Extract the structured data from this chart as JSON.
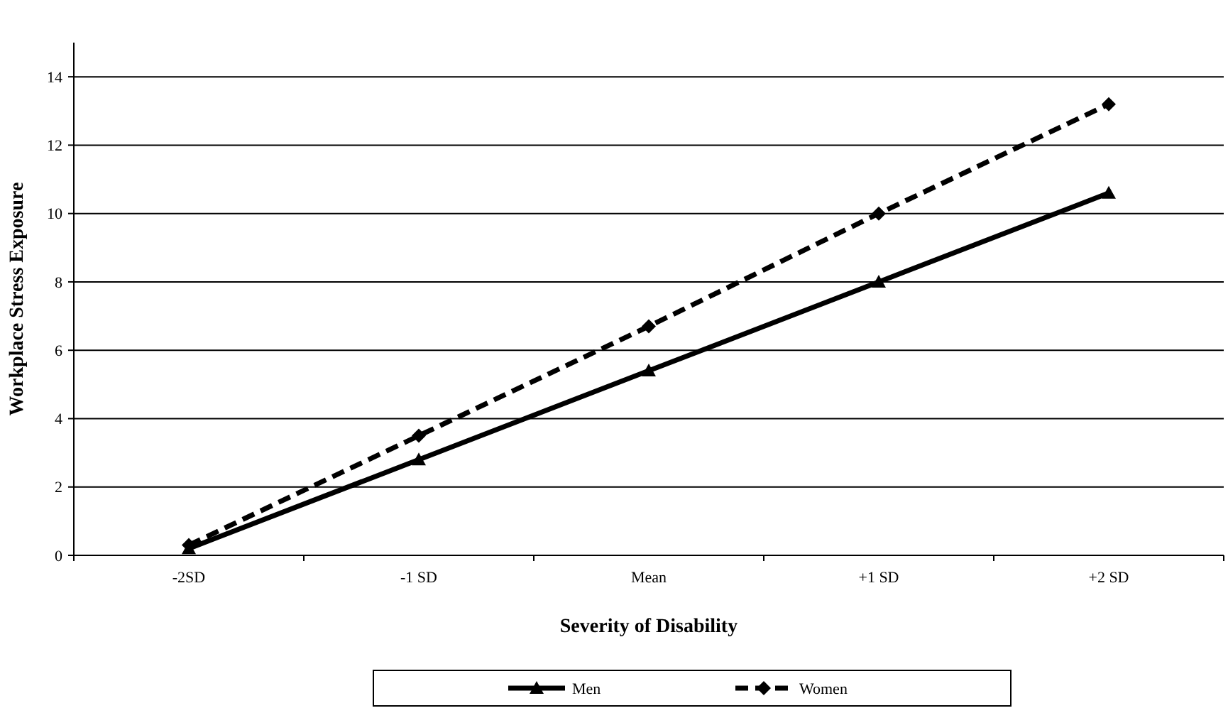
{
  "chart_data": {
    "type": "line",
    "xlabel": "Severity of Disability",
    "ylabel": "Workplace Stress Exposure",
    "categories": [
      "-2SD",
      "-1 SD",
      "Mean",
      "+1 SD",
      "+2 SD"
    ],
    "series": [
      {
        "name": "Men",
        "color": "#000000",
        "values": [
          0.2,
          2.8,
          5.4,
          8.0,
          10.6
        ],
        "marker": "triangle",
        "line_style": "solid"
      },
      {
        "name": "Women",
        "color": "#000000",
        "values": [
          0.3,
          3.5,
          6.7,
          10.0,
          13.2
        ],
        "marker": "diamond",
        "line_style": "dashed"
      }
    ],
    "ylim": [
      0,
      15
    ],
    "yticks": [
      0,
      2,
      4,
      6,
      8,
      10,
      12,
      14
    ],
    "grid": "y",
    "legend": "bottom"
  }
}
